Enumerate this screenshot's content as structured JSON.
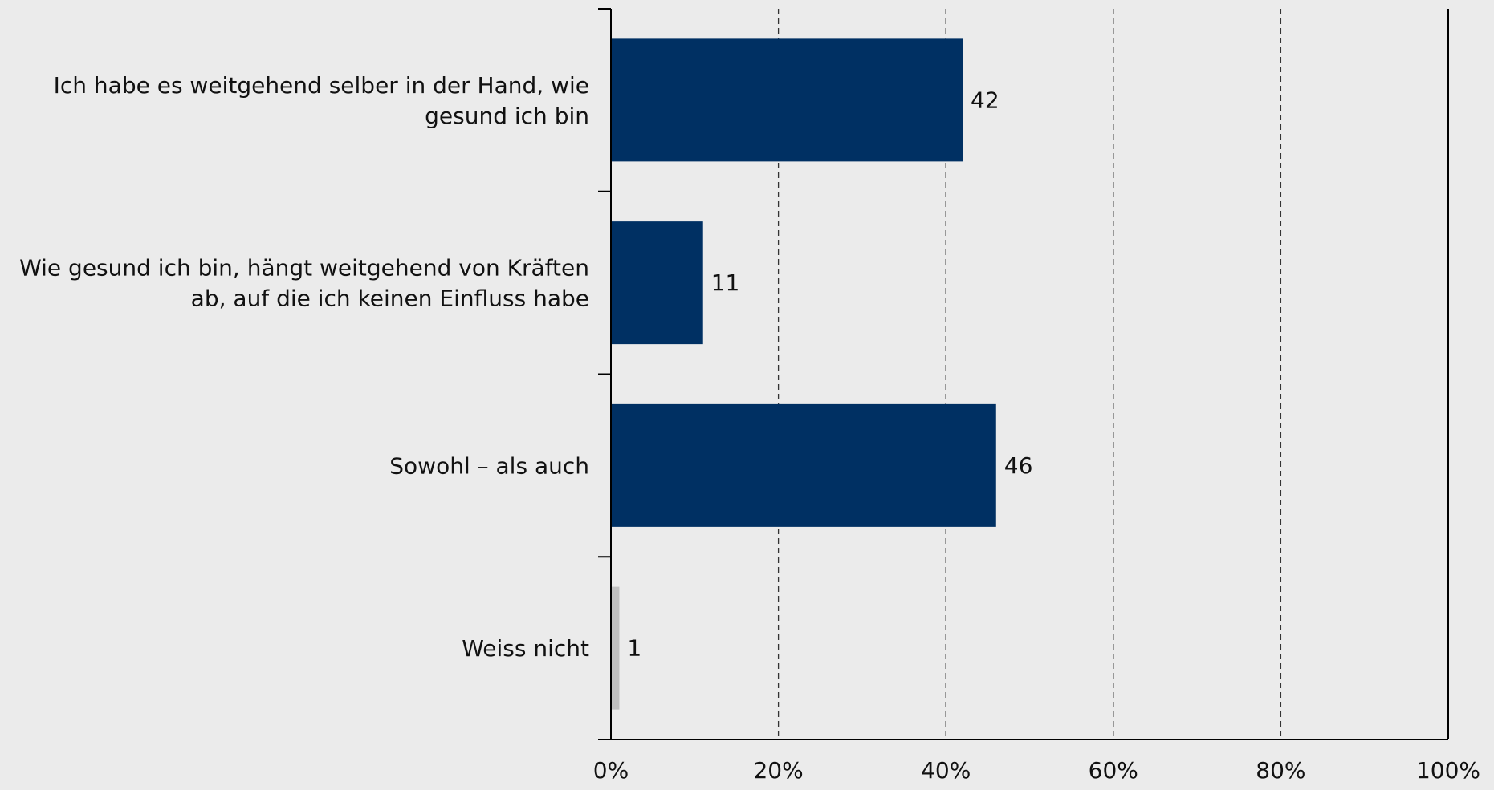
{
  "chart_data": {
    "type": "bar",
    "orientation": "horizontal",
    "categories": [
      [
        "Ich habe es weitgehend selber in der Hand, wie",
        "gesund ich bin"
      ],
      [
        "Wie gesund ich bin, hängt weitgehend von Kräften",
        "ab, auf die ich keinen Einfluss habe"
      ],
      [
        "Sowohl – als auch"
      ],
      [
        "Weiss nicht"
      ]
    ],
    "values": [
      42,
      11,
      46,
      1
    ],
    "value_labels": [
      "42",
      "11",
      "46",
      "1"
    ],
    "xlim": [
      0,
      100
    ],
    "x_ticks": [
      0,
      20,
      40,
      60,
      80,
      100
    ],
    "x_tick_labels": [
      "0%",
      "20%",
      "40%",
      "60%",
      "80%",
      "100%"
    ],
    "grid": "vertical-dashed",
    "colors": {
      "bar": "#003063",
      "bar_muted": "#c0c0c0",
      "background": "#ebebeb",
      "axis": "#000000",
      "grid": "#333333"
    },
    "title": "",
    "xlabel": "",
    "ylabel": ""
  }
}
